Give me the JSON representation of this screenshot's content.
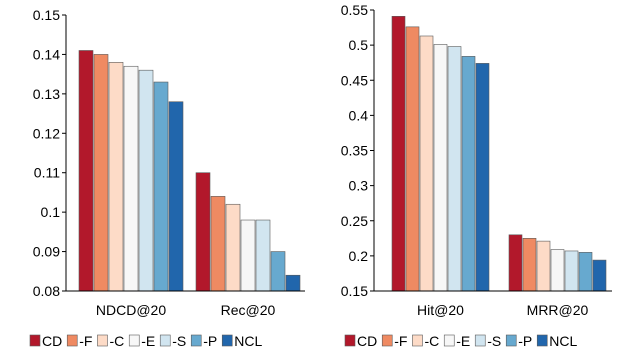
{
  "chart_data": [
    {
      "type": "bar",
      "categories": [
        "NDCD@20",
        "Rec@20"
      ],
      "series": [
        {
          "name": "CD",
          "values": [
            0.141,
            0.11
          ]
        },
        {
          "name": "-F",
          "values": [
            0.14,
            0.104
          ]
        },
        {
          "name": "-C",
          "values": [
            0.138,
            0.102
          ]
        },
        {
          "name": "-E",
          "values": [
            0.137,
            0.098
          ]
        },
        {
          "name": "-S",
          "values": [
            0.136,
            0.098
          ]
        },
        {
          "name": "-P",
          "values": [
            0.133,
            0.09
          ]
        },
        {
          "name": "NCL",
          "values": [
            0.128,
            0.084
          ]
        }
      ],
      "ylim": [
        0.08,
        0.15
      ],
      "yticks": [
        "0.15",
        "0.14",
        "0.13",
        "0.12",
        "0.11",
        "0.1",
        "0.09",
        "0.08"
      ],
      "ytick_values": [
        0.15,
        0.14,
        0.13,
        0.12,
        0.11,
        0.1,
        0.09,
        0.08
      ],
      "grid": false,
      "legend": "bottom"
    },
    {
      "type": "bar",
      "categories": [
        "Hit@20",
        "MRR@20"
      ],
      "series": [
        {
          "name": "CD",
          "values": [
            0.541,
            0.23
          ]
        },
        {
          "name": "-F",
          "values": [
            0.526,
            0.225
          ]
        },
        {
          "name": "-C",
          "values": [
            0.513,
            0.221
          ]
        },
        {
          "name": "-E",
          "values": [
            0.501,
            0.209
          ]
        },
        {
          "name": "-S",
          "values": [
            0.498,
            0.207
          ]
        },
        {
          "name": "-P",
          "values": [
            0.484,
            0.205
          ]
        },
        {
          "name": "NCL",
          "values": [
            0.474,
            0.194
          ]
        }
      ],
      "ylim": [
        0.15,
        0.55
      ],
      "yticks": [
        "0.55",
        "0.5",
        "0.45",
        "0.4",
        "0.35",
        "0.3",
        "0.25",
        "0.2",
        "0.15"
      ],
      "ytick_values": [
        0.55,
        0.5,
        0.45,
        0.4,
        0.35,
        0.3,
        0.25,
        0.2,
        0.15
      ],
      "grid": false,
      "legend": "bottom"
    }
  ],
  "legend_items": [
    {
      "label": "CD",
      "color": "#b2182b"
    },
    {
      "label": "-F",
      "color": "#ef8a62"
    },
    {
      "label": "-C",
      "color": "#fddbc7"
    },
    {
      "label": "-E",
      "color": "#f7f7f7"
    },
    {
      "label": "-S",
      "color": "#d1e5f0"
    },
    {
      "label": "-P",
      "color": "#67a9cf"
    },
    {
      "label": "NCL",
      "color": "#2166ac"
    }
  ]
}
